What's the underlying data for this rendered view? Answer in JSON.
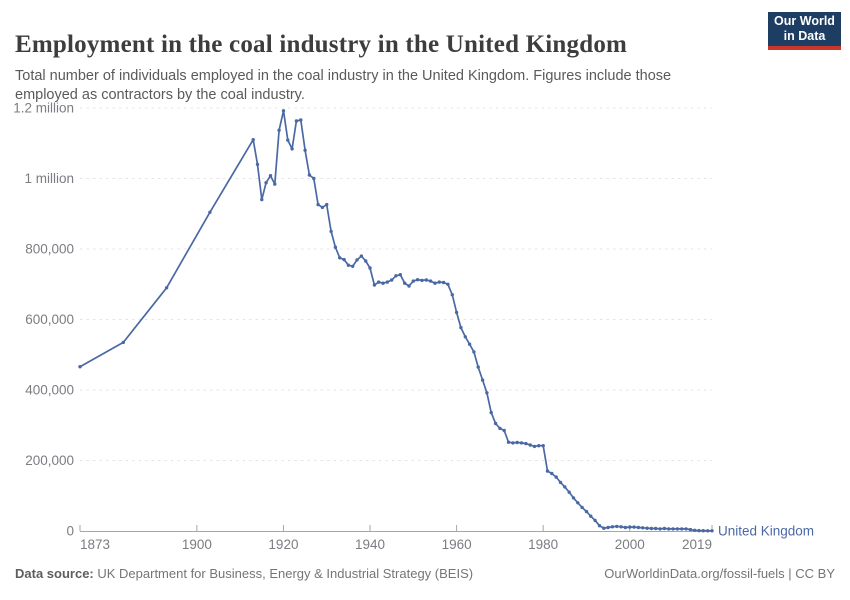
{
  "header": {
    "title": "Employment in the coal industry in the United Kingdom",
    "subtitle": "Total number of individuals employed in the coal industry in the United Kingdom. Figures include those employed as contractors by the coal industry.",
    "logo_line1": "Our World",
    "logo_line2": "in Data"
  },
  "footer": {
    "source_label": "Data source:",
    "source_text": " UK Department for Business, Energy & Industrial Strategy (BEIS)",
    "credit": "OurWorldinData.org/fossil-fuels | CC BY"
  },
  "colors": {
    "line": "#4a69a4",
    "end_label": "#4a69a4",
    "grid": "#e4e4e4",
    "axis": "#a6a6a6",
    "tick_label": "#7c7c83",
    "logo_bg": "#1d3d63",
    "logo_stripe": "#cb362a"
  },
  "chart_data": {
    "type": "line",
    "title": "Employment in the coal industry in the United Kingdom",
    "xlabel": "",
    "ylabel": "",
    "xlim": [
      1873,
      2019
    ],
    "ylim": [
      0,
      1200000
    ],
    "grid": "horizontal-dashed",
    "legend_position": "end-of-line",
    "x_ticks": [
      {
        "value": 1873,
        "label": "1873"
      },
      {
        "value": 1900,
        "label": "1900"
      },
      {
        "value": 1920,
        "label": "1920"
      },
      {
        "value": 1940,
        "label": "1940"
      },
      {
        "value": 1960,
        "label": "1960"
      },
      {
        "value": 1980,
        "label": "1980"
      },
      {
        "value": 2000,
        "label": "2000"
      },
      {
        "value": 2019,
        "label": "2019"
      }
    ],
    "y_ticks": [
      {
        "value": 0,
        "label": "0"
      },
      {
        "value": 200000,
        "label": "200,000"
      },
      {
        "value": 400000,
        "label": "400,000"
      },
      {
        "value": 600000,
        "label": "600,000"
      },
      {
        "value": 800000,
        "label": "800,000"
      },
      {
        "value": 1000000,
        "label": "1 million"
      },
      {
        "value": 1200000,
        "label": "1.2 million"
      }
    ],
    "series": [
      {
        "name": "United Kingdom",
        "points": [
          [
            1873,
            466000
          ],
          [
            1883,
            535000
          ],
          [
            1893,
            690000
          ],
          [
            1903,
            904000
          ],
          [
            1913,
            1110000
          ],
          [
            1914,
            1040000
          ],
          [
            1915,
            940000
          ],
          [
            1916,
            988000
          ],
          [
            1917,
            1008000
          ],
          [
            1918,
            984000
          ],
          [
            1919,
            1137000
          ],
          [
            1920,
            1192000
          ],
          [
            1921,
            1109000
          ],
          [
            1922,
            1084000
          ],
          [
            1923,
            1163000
          ],
          [
            1924,
            1166000
          ],
          [
            1925,
            1080000
          ],
          [
            1926,
            1010000
          ],
          [
            1927,
            1000000
          ],
          [
            1928,
            926000
          ],
          [
            1929,
            918000
          ],
          [
            1930,
            926000
          ],
          [
            1931,
            850000
          ],
          [
            1932,
            805000
          ],
          [
            1933,
            775000
          ],
          [
            1934,
            770000
          ],
          [
            1935,
            754000
          ],
          [
            1936,
            751000
          ],
          [
            1937,
            769000
          ],
          [
            1938,
            780000
          ],
          [
            1939,
            766000
          ],
          [
            1940,
            746000
          ],
          [
            1941,
            698000
          ],
          [
            1942,
            706000
          ],
          [
            1943,
            703000
          ],
          [
            1944,
            706000
          ],
          [
            1945,
            712000
          ],
          [
            1946,
            724000
          ],
          [
            1947,
            727000
          ],
          [
            1948,
            703000
          ],
          [
            1949,
            695000
          ],
          [
            1950,
            709000
          ],
          [
            1951,
            713000
          ],
          [
            1952,
            711000
          ],
          [
            1953,
            712000
          ],
          [
            1954,
            709000
          ],
          [
            1955,
            703000
          ],
          [
            1956,
            706000
          ],
          [
            1957,
            705000
          ],
          [
            1958,
            700000
          ],
          [
            1959,
            670000
          ],
          [
            1960,
            620000
          ],
          [
            1961,
            577000
          ],
          [
            1962,
            551000
          ],
          [
            1963,
            530000
          ],
          [
            1964,
            508000
          ],
          [
            1965,
            465000
          ],
          [
            1966,
            428000
          ],
          [
            1967,
            392000
          ],
          [
            1968,
            336000
          ],
          [
            1969,
            305000
          ],
          [
            1970,
            291000
          ],
          [
            1971,
            285000
          ],
          [
            1972,
            252000
          ],
          [
            1973,
            250000
          ],
          [
            1974,
            251000
          ],
          [
            1975,
            250000
          ],
          [
            1976,
            248000
          ],
          [
            1977,
            244000
          ],
          [
            1978,
            240000
          ],
          [
            1979,
            242000
          ],
          [
            1980,
            242000
          ],
          [
            1981,
            170000
          ],
          [
            1982,
            163000
          ],
          [
            1983,
            153000
          ],
          [
            1984,
            138000
          ],
          [
            1985,
            125000
          ],
          [
            1986,
            110000
          ],
          [
            1987,
            94000
          ],
          [
            1988,
            80000
          ],
          [
            1989,
            67000
          ],
          [
            1990,
            55000
          ],
          [
            1991,
            42000
          ],
          [
            1992,
            30000
          ],
          [
            1993,
            15000
          ],
          [
            1994,
            8000
          ],
          [
            1995,
            10000
          ],
          [
            1996,
            12000
          ],
          [
            1997,
            13000
          ],
          [
            1998,
            12000
          ],
          [
            1999,
            10000
          ],
          [
            2000,
            11000
          ],
          [
            2001,
            11000
          ],
          [
            2002,
            10000
          ],
          [
            2003,
            9000
          ],
          [
            2004,
            8000
          ],
          [
            2005,
            7000
          ],
          [
            2006,
            7000
          ],
          [
            2007,
            6000
          ],
          [
            2008,
            7000
          ],
          [
            2009,
            6000
          ],
          [
            2010,
            6000
          ],
          [
            2011,
            6000
          ],
          [
            2012,
            6000
          ],
          [
            2013,
            6000
          ],
          [
            2014,
            4000
          ],
          [
            2015,
            2000
          ],
          [
            2016,
            1200
          ],
          [
            2017,
            900
          ],
          [
            2018,
            700
          ],
          [
            2019,
            600
          ]
        ]
      }
    ]
  }
}
